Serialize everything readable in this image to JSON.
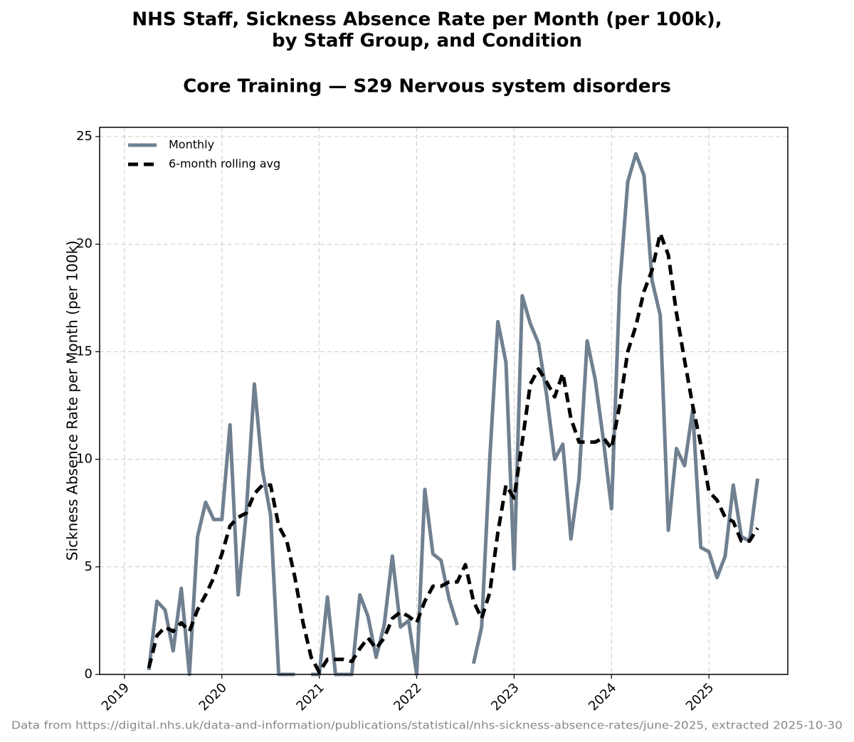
{
  "chart_data": {
    "type": "line",
    "title": [
      "NHS Staff, Sickness Absence Rate per Month (per 100k),",
      "by Staff Group, and Condition"
    ],
    "subtitle": "Core Training — S29 Nervous system disorders",
    "y_label": "Sickness Absence Rate per Month (per 100k)",
    "footnote": "Data from https://digital.nhs.uk/data-and-information/publications/statistical/nhs-sickness-absence-rates/june-2025, extracted 2025-10-30",
    "x": [
      "2019-04",
      "2019-05",
      "2019-06",
      "2019-07",
      "2019-08",
      "2019-09",
      "2019-10",
      "2019-11",
      "2019-12",
      "2020-01",
      "2020-02",
      "2020-03",
      "2020-04",
      "2020-05",
      "2020-06",
      "2020-07",
      "2020-08",
      "2020-09",
      "2020-10",
      "2020-11",
      "2020-12",
      "2021-01",
      "2021-02",
      "2021-03",
      "2021-04",
      "2021-05",
      "2021-06",
      "2021-07",
      "2021-08",
      "2021-09",
      "2021-10",
      "2021-11",
      "2021-12",
      "2022-01",
      "2022-02",
      "2022-03",
      "2022-04",
      "2022-05",
      "2022-06",
      "2022-07",
      "2022-08",
      "2022-09",
      "2022-10",
      "2022-11",
      "2022-12",
      "2023-01",
      "2023-02",
      "2023-03",
      "2023-04",
      "2023-05",
      "2023-06",
      "2023-07",
      "2023-08",
      "2023-09",
      "2023-10",
      "2023-11",
      "2023-12",
      "2024-01",
      "2024-02",
      "2024-03",
      "2024-04",
      "2024-05",
      "2024-06",
      "2024-07",
      "2024-08",
      "2024-09",
      "2024-10",
      "2024-11",
      "2024-12",
      "2025-01",
      "2025-02",
      "2025-03",
      "2025-04",
      "2025-05",
      "2025-06",
      "2025-07"
    ],
    "series": [
      {
        "name": "Monthly",
        "color": "#708090",
        "style": "solid",
        "values": [
          0.2,
          3.4,
          3.0,
          1.1,
          4.0,
          0,
          6.4,
          8.0,
          7.2,
          7.2,
          11.6,
          3.7,
          7.5,
          13.5,
          9.5,
          7.4,
          0,
          0,
          0,
          null,
          0,
          0,
          3.6,
          0,
          0,
          0,
          3.7,
          2.7,
          0.8,
          2.3,
          5.5,
          2.2,
          2.5,
          0,
          8.6,
          5.6,
          5.3,
          3.5,
          2.3,
          null,
          0.5,
          2.2,
          10.0,
          16.4,
          14.5,
          4.9,
          17.6,
          16.3,
          15.4,
          13.0,
          10.0,
          10.7,
          6.3,
          9.1,
          15.5,
          13.7,
          10.9,
          7.7,
          18.0,
          22.9,
          24.2,
          23.2,
          18.3,
          16.7,
          6.7,
          10.5,
          9.7,
          12.3,
          5.9,
          5.7,
          4.5,
          5.5,
          8.8,
          6.4,
          6.2,
          9.1
        ]
      },
      {
        "name": "6-month rolling avg",
        "color": "#000000",
        "style": "dashed",
        "values": [
          0.3,
          1.8,
          2.2,
          2.0,
          2.4,
          2.0,
          3.0,
          3.7,
          4.5,
          5.6,
          6.9,
          7.3,
          7.5,
          8.4,
          8.8,
          8.8,
          6.9,
          6.2,
          4.5,
          2.4,
          0.8,
          0.1,
          0.7,
          0.7,
          0.7,
          0.6,
          1.2,
          1.7,
          1.2,
          1.7,
          2.6,
          2.9,
          2.7,
          2.4,
          3.4,
          4.1,
          4.1,
          4.3,
          4.3,
          5.1,
          3.4,
          2.6,
          3.8,
          6.6,
          8.8,
          8.2,
          10.8,
          13.5,
          14.2,
          13.6,
          12.9,
          14.0,
          11.9,
          10.8,
          10.8,
          10.8,
          11.0,
          10.5,
          12.5,
          15.0,
          16.2,
          17.8,
          18.8,
          20.5,
          19.5,
          16.8,
          14.6,
          12.5,
          10.7,
          8.5,
          8.1,
          7.3,
          7.1,
          6.2,
          6.2,
          6.8
        ]
      }
    ],
    "xlim": [
      2018.745,
      2025.81
    ],
    "xticks": [
      2019,
      2020,
      2021,
      2022,
      2023,
      2024,
      2025
    ],
    "ylim": [
      0,
      25.43
    ],
    "yticks": [
      0,
      5,
      10,
      15,
      20,
      25
    ],
    "grid": true,
    "legend": "upper left"
  }
}
